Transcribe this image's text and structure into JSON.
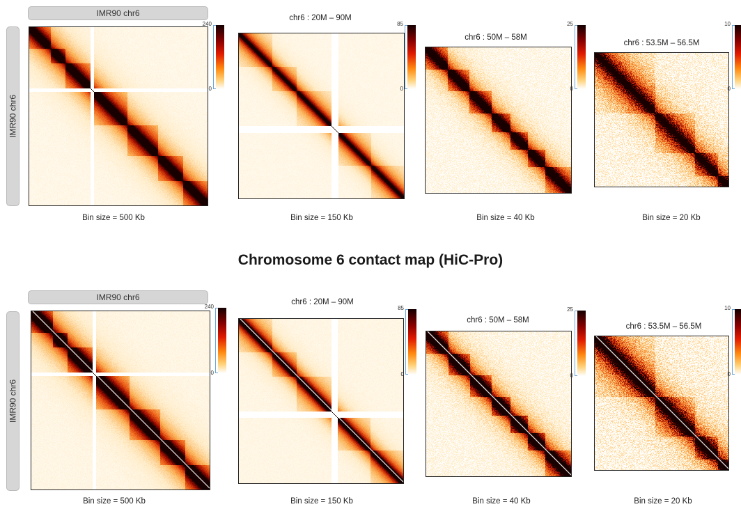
{
  "section_title": "Chromosome 6 contact map (HiC-Pro)",
  "panels": [
    {
      "row_label": "IMR90 chr6",
      "col_label": "IMR90 chr6",
      "maps": [
        {
          "title": "",
          "bin_label": "Bin size = 500 Kb",
          "scale_max": "240",
          "scale_min": "0"
        },
        {
          "title": "chr6 : 20M – 90M",
          "bin_label": "Bin size = 150 Kb",
          "scale_max": "85",
          "scale_min": "0"
        },
        {
          "title": "chr6 : 50M – 58M",
          "bin_label": "Bin size = 40 Kb",
          "scale_max": "25",
          "scale_min": "0"
        },
        {
          "title": "chr6 : 53.5M – 56.5M",
          "bin_label": "Bin size = 20 Kb",
          "scale_max": "10",
          "scale_min": "0"
        }
      ]
    },
    {
      "row_label": "IMR90 chr6",
      "col_label": "IMR90 chr6",
      "maps": [
        {
          "title": "",
          "bin_label": "Bin size = 500 Kb",
          "scale_max": "240",
          "scale_min": "0"
        },
        {
          "title": "chr6 : 20M – 90M",
          "bin_label": "Bin size = 150 Kb",
          "scale_max": "85",
          "scale_min": "0"
        },
        {
          "title": "chr6 : 50M – 58M",
          "bin_label": "Bin size = 40 Kb",
          "scale_max": "25",
          "scale_min": "0"
        },
        {
          "title": "chr6 : 53.5M – 56.5M",
          "bin_label": "Bin size = 20 Kb",
          "scale_max": "10",
          "scale_min": "0"
        }
      ]
    }
  ],
  "colors": {
    "heat_dark": "#1a0000",
    "heat_mid": "#e8400a",
    "heat_light": "#ffe6b8",
    "background": "#ffffff",
    "pill": "#d6d6d6"
  }
}
